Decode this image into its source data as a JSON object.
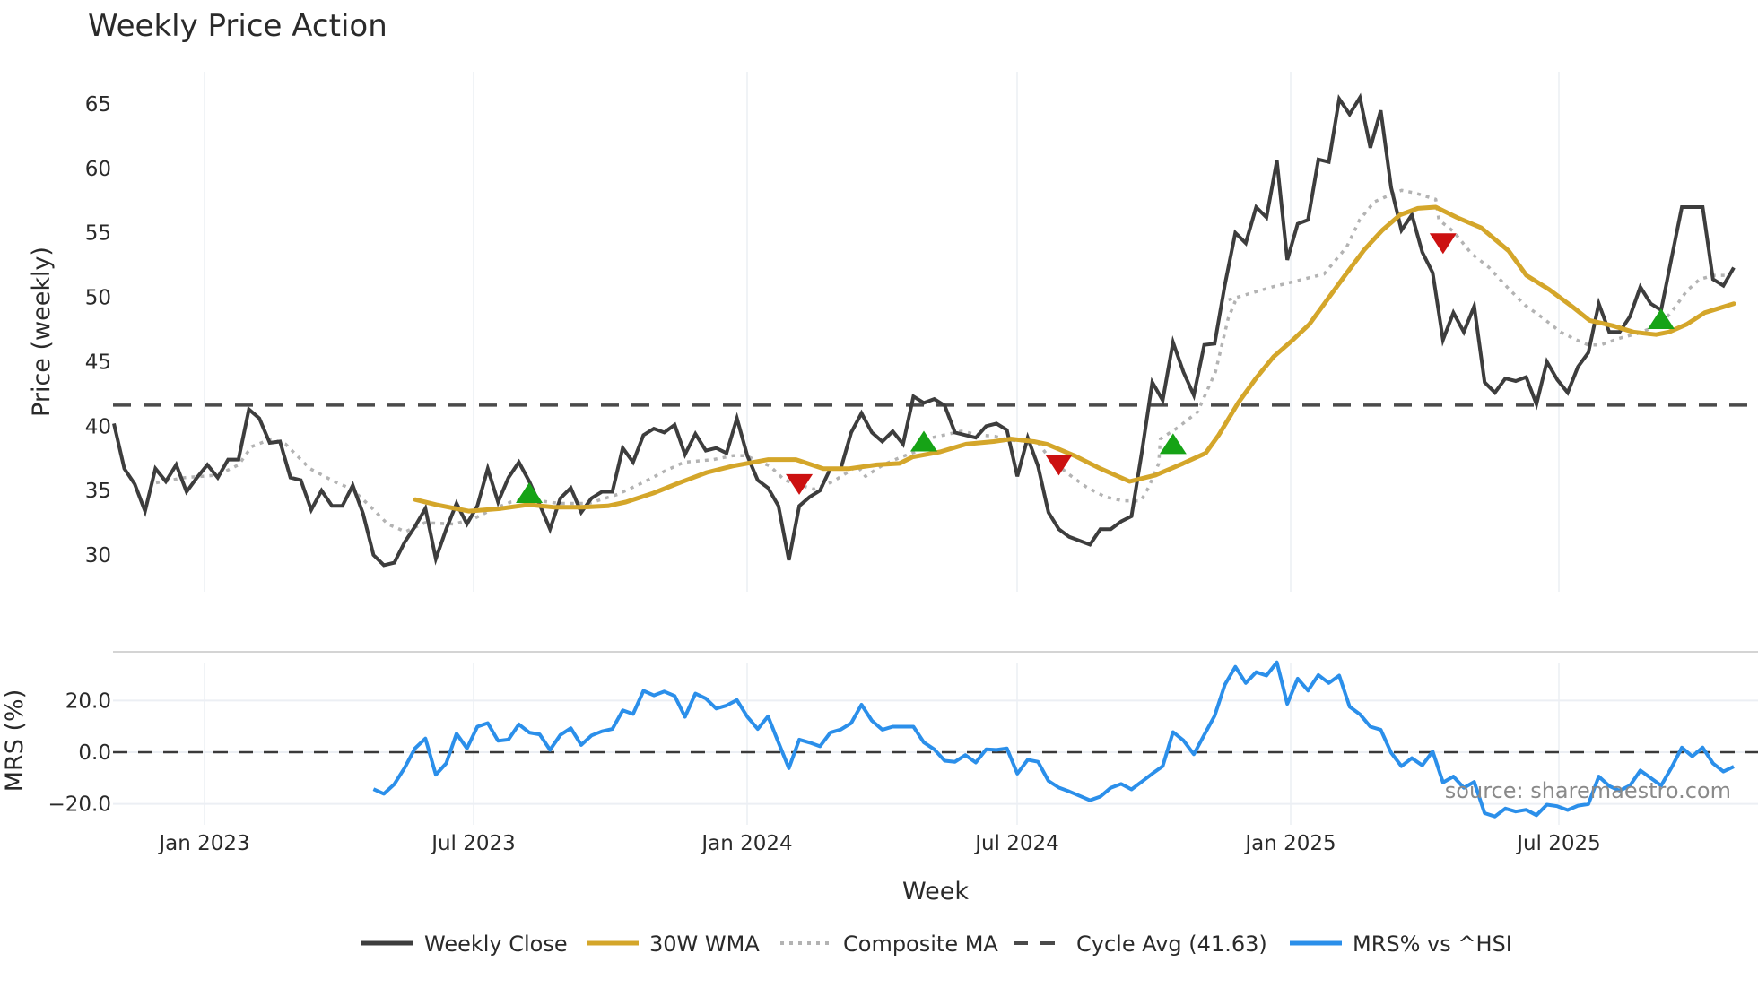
{
  "title": "Weekly Price Action",
  "source_label": "source: sharemaestro.com",
  "colors": {
    "close": "#3d3d3d",
    "wma": "#d4a62a",
    "composite": "#b3b3b3",
    "cycle": "#4a4a4a",
    "mrs": "#2b8fea",
    "buy": "#16a316",
    "sell": "#cc1111",
    "grid": "#eceff4"
  },
  "legend": [
    {
      "key": "close",
      "label": "Weekly Close",
      "style": "solid"
    },
    {
      "key": "wma",
      "label": "30W WMA",
      "style": "solid"
    },
    {
      "key": "composite",
      "label": "Composite MA",
      "style": "dot"
    },
    {
      "key": "cycle",
      "label": "Cycle Avg (41.63)",
      "style": "dash"
    },
    {
      "key": "mrs",
      "label": "MRS% vs ^HSI",
      "style": "solid"
    }
  ],
  "chart_data": [
    {
      "type": "line",
      "title": "Weekly Price Action",
      "xlabel": "Week",
      "ylabel": "Price (weekly)",
      "ylim": [
        27,
        68
      ],
      "yticks": [
        30,
        35,
        40,
        45,
        50,
        55,
        60,
        65
      ],
      "xticks": [
        "Jan 2023",
        "Jul 2023",
        "Jan 2024",
        "Jul 2024",
        "Jan 2025",
        "Jul 2025"
      ],
      "grid": true,
      "legend_position": "bottom",
      "x_start": "Dec 2022",
      "x_end": "Oct 2025",
      "series": [
        {
          "name": "Weekly Close",
          "values": [
            40.2,
            36.7,
            35.5,
            33.4,
            36.7,
            35.7,
            37.0,
            34.9,
            36.0,
            37.0,
            36.0,
            37.4,
            37.4,
            41.3,
            40.6,
            38.7,
            38.8,
            36.0,
            35.8,
            33.5,
            35.0,
            33.8,
            33.8,
            35.4,
            33.2,
            30.0,
            29.2,
            29.4,
            31.0,
            32.2,
            33.6,
            29.7,
            32.0,
            34.0,
            32.4,
            33.8,
            36.7,
            34.1,
            36.0,
            37.2,
            35.7,
            33.9,
            32.0,
            34.4,
            35.2,
            33.3,
            34.4,
            34.9,
            34.9,
            38.3,
            37.2,
            39.3,
            39.8,
            39.5,
            40.1,
            37.8,
            39.4,
            38.1,
            38.3,
            37.9,
            40.6,
            37.7,
            35.8,
            35.2,
            33.8,
            29.6,
            33.8,
            34.5,
            35.0,
            36.7,
            36.7,
            39.5,
            41.0,
            39.5,
            38.8,
            39.6,
            38.6,
            42.3,
            41.8,
            42.1,
            41.6,
            39.5,
            39.3,
            39.1,
            40.0,
            40.2,
            39.7,
            36.1,
            39.1,
            36.9,
            33.3,
            32.0,
            31.4,
            31.1,
            30.8,
            32.0,
            32.0,
            32.6,
            33.0,
            38.0,
            43.4,
            42.0,
            46.5,
            44.2,
            42.4,
            46.3,
            46.4,
            51.0,
            55.0,
            54.2,
            57.0,
            56.2,
            60.6,
            52.9,
            55.7,
            56.0,
            60.7,
            60.5,
            65.4,
            64.2,
            65.5,
            61.6,
            64.5,
            58.5,
            55.2,
            56.4,
            53.5,
            51.9,
            46.7,
            48.8,
            47.3,
            49.3,
            43.4,
            42.6,
            43.7,
            43.5,
            43.8,
            41.7,
            45.0,
            43.6,
            42.6,
            44.6,
            45.7,
            49.5,
            47.3,
            47.3,
            48.5,
            50.8,
            49.5,
            49.0,
            53.0,
            57.0,
            57.0,
            57.0,
            51.4,
            50.9,
            52.3
          ]
        },
        {
          "name": "30W WMA",
          "start_week_index": 29,
          "keypoints_week_fraction": [
            0.186,
            0.199,
            0.219,
            0.239,
            0.256,
            0.272,
            0.289,
            0.305,
            0.316,
            0.333,
            0.349,
            0.366,
            0.382,
            0.404,
            0.421,
            0.438,
            0.454,
            0.471,
            0.485,
            0.493,
            0.51,
            0.526,
            0.543,
            0.554,
            0.568,
            0.576,
            0.593,
            0.609,
            0.627,
            0.643,
            0.66,
            0.674,
            0.682,
            0.694,
            0.705,
            0.716,
            0.727,
            0.738,
            0.749,
            0.76,
            0.772,
            0.783,
            0.794,
            0.805,
            0.816,
            0.829,
            0.844,
            0.861,
            0.872,
            0.886,
            0.9,
            0.911,
            0.925,
            0.938,
            0.945,
            0.952,
            0.96,
            0.971,
            0.982,
            1.0
          ],
          "values": [
            34.3,
            33.9,
            33.4,
            33.6,
            33.9,
            33.7,
            33.7,
            33.8,
            34.1,
            34.8,
            35.6,
            36.4,
            36.9,
            37.4,
            37.4,
            36.7,
            36.7,
            37.0,
            37.1,
            37.6,
            38.0,
            38.6,
            38.8,
            39.0,
            38.8,
            38.6,
            37.7,
            36.7,
            35.7,
            36.2,
            37.1,
            37.9,
            39.3,
            41.8,
            43.7,
            45.4,
            46.6,
            47.9,
            49.8,
            51.7,
            53.7,
            55.2,
            56.4,
            56.9,
            57.0,
            56.2,
            55.4,
            53.6,
            51.7,
            50.6,
            49.3,
            48.2,
            47.8,
            47.3,
            47.2,
            47.1,
            47.3,
            47.9,
            48.8,
            49.5
          ]
        },
        {
          "name": "Composite MA",
          "keypoints_week_fraction": [
            0.026,
            0.044,
            0.064,
            0.077,
            0.085,
            0.097,
            0.106,
            0.121,
            0.136,
            0.147,
            0.158,
            0.169,
            0.18,
            0.192,
            0.21,
            0.222,
            0.233,
            0.245,
            0.257,
            0.275,
            0.293,
            0.311,
            0.328,
            0.34,
            0.352,
            0.37,
            0.382,
            0.39,
            0.405,
            0.414,
            0.432,
            0.444,
            0.459,
            0.464,
            0.475,
            0.486,
            0.497,
            0.505,
            0.523,
            0.535,
            0.544,
            0.553,
            0.57,
            0.577,
            0.589,
            0.6,
            0.612,
            0.623,
            0.634,
            0.639,
            0.645,
            0.646,
            0.657,
            0.669,
            0.68,
            0.688,
            0.692,
            0.688,
            0.715,
            0.747,
            0.761,
            0.769,
            0.778,
            0.787,
            0.795,
            0.803,
            0.816,
            0.818,
            0.827,
            0.838,
            0.849,
            0.86,
            0.871,
            0.882,
            0.893,
            0.901,
            0.91,
            0.918,
            0.929,
            0.941,
            0.955,
            0.963,
            0.971,
            0.979,
            0.988,
            0.997
          ],
          "values": [
            35.6,
            36.0,
            36.2,
            37.0,
            38.4,
            39.0,
            38.6,
            36.7,
            35.7,
            35.1,
            33.8,
            32.4,
            31.8,
            32.5,
            32.4,
            32.8,
            33.5,
            34.1,
            34.3,
            34.0,
            34.0,
            34.7,
            35.7,
            36.5,
            37.2,
            37.4,
            37.7,
            37.7,
            36.9,
            35.8,
            35.1,
            35.7,
            36.9,
            36.1,
            37.0,
            37.6,
            38.1,
            39.1,
            39.6,
            39.3,
            39.2,
            38.9,
            38.8,
            37.6,
            36.3,
            35.3,
            34.5,
            34.2,
            34.2,
            35.3,
            37.1,
            39.0,
            39.9,
            41.1,
            44.2,
            48.4,
            49.6,
            49.8,
            50.8,
            51.8,
            53.9,
            56.0,
            57.4,
            57.9,
            58.3,
            58.1,
            57.6,
            56.0,
            55.1,
            53.4,
            52.3,
            50.8,
            49.4,
            48.4,
            47.3,
            46.8,
            46.3,
            46.3,
            46.8,
            47.2,
            47.9,
            49.1,
            50.5,
            51.4,
            51.7,
            51.7,
            51.5
          ]
        },
        {
          "name": "Cycle Avg (41.63)",
          "constant": 41.63
        }
      ],
      "signals": {
        "buy": [
          {
            "week_index": 40,
            "value": 34.8
          },
          {
            "week_index": 78,
            "value": 38.8
          },
          {
            "week_index": 102,
            "value": 38.6
          },
          {
            "week_index": 149,
            "value": 48.3
          }
        ],
        "sell": [
          {
            "week_index": 66,
            "value": 35.5
          },
          {
            "week_index": 91,
            "value": 37.0
          },
          {
            "week_index": 128,
            "value": 54.2
          }
        ]
      }
    },
    {
      "type": "line",
      "title": "",
      "xlabel": "Week",
      "ylabel": "MRS (%)",
      "ylim": [
        -27,
        38
      ],
      "yticks": [
        20.0,
        0.0,
        -20.0
      ],
      "ytick_labels": [
        "20.0",
        "0.0",
        "−20.0"
      ],
      "grid": true,
      "zero_line": "dashed",
      "series": [
        {
          "name": "MRS% vs ^HSI",
          "start_week_index": 25,
          "values": [
            -14.3,
            -16.1,
            -12.4,
            -6.0,
            1.5,
            5.3,
            -8.7,
            -4.3,
            7.2,
            1.5,
            9.9,
            11.3,
            4.4,
            4.9,
            10.8,
            7.6,
            6.9,
            0.9,
            6.7,
            9.3,
            2.8,
            6.5,
            8.1,
            9.0,
            16.2,
            14.8,
            23.8,
            22.0,
            23.5,
            21.8,
            13.7,
            22.7,
            20.8,
            16.9,
            18.1,
            20.2,
            13.7,
            9.0,
            13.9,
            3.8,
            -6.2,
            4.9,
            3.7,
            2.3,
            7.6,
            8.8,
            11.3,
            18.4,
            12.2,
            8.7,
            9.9,
            9.9,
            9.9,
            3.8,
            1.1,
            -3.3,
            -3.7,
            -1.1,
            -4.0,
            1.1,
            0.9,
            1.5,
            -8.3,
            -2.9,
            -3.7,
            -11.1,
            -13.7,
            -15.2,
            -16.9,
            -18.6,
            -17.2,
            -13.8,
            -12.3,
            -14.4,
            -11.4,
            -8.3,
            -5.4,
            7.8,
            4.6,
            -0.8,
            6.7,
            14.1,
            26.2,
            33.1,
            26.8,
            31.0,
            29.7,
            34.8,
            18.7,
            28.5,
            23.9,
            29.9,
            26.8,
            29.7,
            17.6,
            14.7,
            9.9,
            8.7,
            -0.2,
            -5.4,
            -2.3,
            -5.1,
            0.3,
            -11.7,
            -9.4,
            -13.8,
            -11.5,
            -23.6,
            -24.9,
            -21.8,
            -23.0,
            -22.3,
            -24.4,
            -20.3,
            -20.9,
            -22.4,
            -20.7,
            -20.1,
            -9.4,
            -13.1,
            -14.9,
            -12.9,
            -7.1,
            -10.0,
            -12.9,
            -6.0,
            1.8,
            -1.6,
            1.8,
            -4.3,
            -7.5,
            -5.6
          ]
        }
      ]
    }
  ]
}
